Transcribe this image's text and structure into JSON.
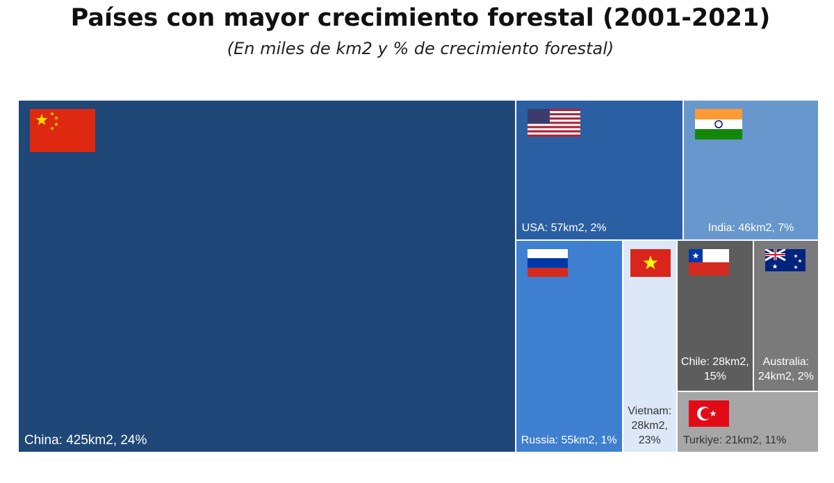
{
  "chart_data": {
    "type": "treemap",
    "title": "Países con mayor crecimiento forestal (2001-2021)",
    "subtitle": "(En miles de km2 y % de crecimiento forestal)",
    "values": [
      425,
      57,
      46,
      55,
      28,
      28,
      24,
      21
    ],
    "value_labels": [
      "China: 425km2, 24%",
      "USA: 57km2, 2%",
      "India: 46km2, 7%",
      "Russia: 55km2, 1%",
      "Vietnam: 28km2, 23%",
      "Chile: 28km2, 15%",
      "Australia: 24km2, 2%",
      "Turkiye: 21km2, 11%"
    ],
    "colors": [
      "#1f4777",
      "#2b5fa3",
      "#6797cc",
      "#3f7fd0",
      "#dce8f7",
      "#5d5d5d",
      "#7a7a7a",
      "#a6a6a6"
    ]
  }
}
